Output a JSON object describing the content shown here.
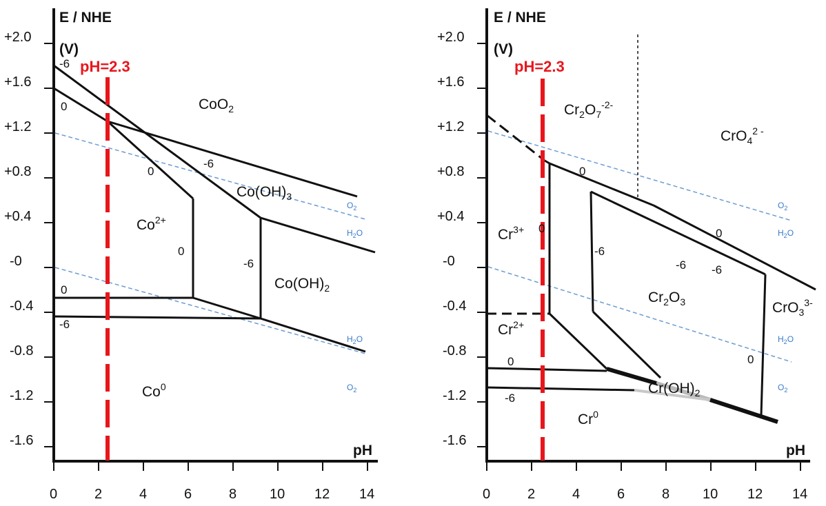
{
  "axis_title_y_line1": "E / NHE",
  "axis_title_y_line2": "(V)",
  "axis_title_x": "pH",
  "y_ticks": [
    "+2.0",
    "+1.6",
    "+1.2",
    "+0.8",
    "+0.4",
    "-0",
    "-0.4",
    "-0.8",
    "-1.2",
    "-1.6"
  ],
  "x_ticks": [
    "0",
    "2",
    "4",
    "6",
    "8",
    "10",
    "12",
    "14"
  ],
  "ph_marker": "pH=2.3",
  "colors": {
    "marker": "#e8161b",
    "water_lines": "#6a9bd1",
    "water_labels": "#3a7bc8",
    "lines": "#111111"
  },
  "cobalt": {
    "species": {
      "coo2": {
        "main": "CoO",
        "sub": "2"
      },
      "cooh3": {
        "main": "Co(OH)",
        "sub": "3"
      },
      "co2plus": {
        "main": "Co",
        "sup": "2+"
      },
      "cooh2": {
        "main": "Co(OH)",
        "sub": "2"
      },
      "co0": {
        "main": "Co",
        "sup": "0"
      }
    },
    "concentration_labels": [
      "-6",
      "0",
      "0",
      "-6",
      "0",
      "-6",
      "0",
      "-6"
    ],
    "water": {
      "o2_top": "O",
      "h2o_top": "H",
      "h2_bottom": "H",
      "o2_bottom": "O",
      "sub2": "2",
      "o": "O"
    }
  },
  "chromium": {
    "species": {
      "cr2o7": {
        "main": "Cr",
        "sub1": "2",
        "mid": "O",
        "sub2": "7",
        "sup": "-2-"
      },
      "cro4": {
        "main": "CrO",
        "sub": "4",
        "sup": "2 -"
      },
      "cr3plus": {
        "main": "Cr",
        "sup": "3+"
      },
      "cr2o3": {
        "main": "Cr",
        "sub1": "2",
        "mid": "O",
        "sub2": "3"
      },
      "cro3": {
        "main": "CrO",
        "sub": "3",
        "sup": "3-"
      },
      "cr2plus": {
        "main": "Cr",
        "sup": "2+"
      },
      "crooh2": {
        "main": "Cr(OH)",
        "sub": "2"
      },
      "cr0": {
        "main": "Cr",
        "sup": "0"
      }
    },
    "concentration_labels": [
      "0",
      "0",
      "0",
      "-6",
      "-6",
      "-6",
      "0",
      "0",
      "-6"
    ],
    "water": {
      "o2_top": "O",
      "h2o_top": "H",
      "h2_bottom": "H",
      "o2_bottom": "O",
      "sub2": "2",
      "o": "O"
    }
  }
}
